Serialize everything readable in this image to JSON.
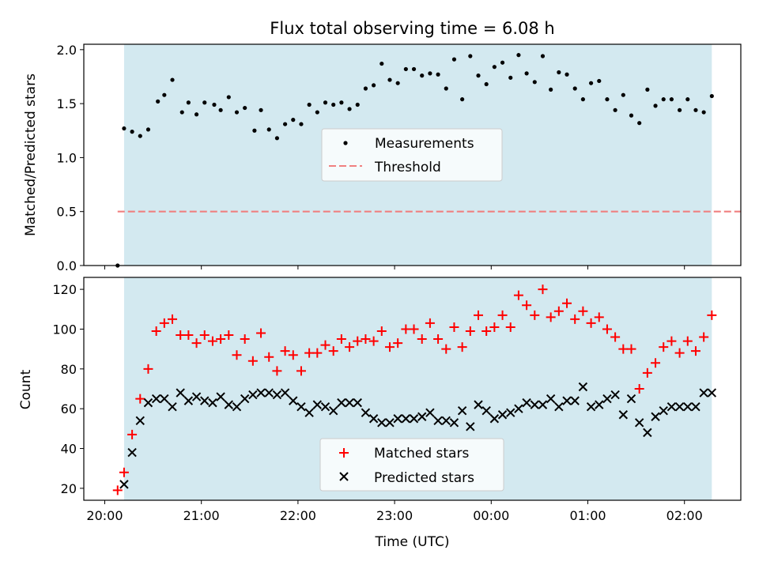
{
  "chart_data": {
    "title": "Flux total observing time = 6.08 h",
    "xlabel": "Time (UTC)",
    "xtick_labels": [
      "20:00",
      "21:00",
      "22:00",
      "23:00",
      "00:00",
      "01:00",
      "02:00"
    ],
    "xtick_values": [
      0,
      60,
      120,
      180,
      240,
      300,
      360
    ],
    "x_units_note": "minutes after 20:00 UTC",
    "xlim": [
      -13,
      395
    ],
    "shaded_interval": [
      12,
      377
    ],
    "shade_color": "#d3e9f0",
    "top_panel": {
      "type": "scatter",
      "ylabel": "Matched/Predicted stars",
      "ylim": [
        0,
        2.05
      ],
      "yticks": [
        0.0,
        0.5,
        1.0,
        1.5,
        2.0
      ],
      "ytick_labels": [
        "0.0",
        "0.5",
        "1.0",
        "1.5",
        "2.0"
      ],
      "threshold": 0.5,
      "threshold_color": "#f08080",
      "measurement_color": "#000000",
      "legend": [
        "Measurements",
        "Threshold"
      ],
      "measurements": {
        "x": [
          8,
          12,
          17,
          22,
          27,
          33,
          37,
          42,
          48,
          52,
          57,
          62,
          68,
          72,
          77,
          82,
          87,
          93,
          97,
          102,
          107,
          112,
          117,
          122,
          127,
          132,
          137,
          142,
          147,
          152,
          157,
          162,
          167,
          172,
          177,
          182,
          187,
          192,
          197,
          202,
          207,
          212,
          217,
          222,
          227,
          232,
          237,
          242,
          247,
          252,
          257,
          262,
          267,
          272,
          277,
          282,
          287,
          292,
          297,
          302,
          307,
          312,
          317,
          322,
          327,
          332,
          337,
          342,
          347,
          352,
          357,
          362,
          367,
          372,
          377
        ],
        "y": [
          0.0,
          1.27,
          1.24,
          1.2,
          1.26,
          1.52,
          1.58,
          1.72,
          1.42,
          1.51,
          1.4,
          1.51,
          1.49,
          1.44,
          1.56,
          1.42,
          1.46,
          1.25,
          1.44,
          1.26,
          1.18,
          1.31,
          1.35,
          1.31,
          1.49,
          1.42,
          1.51,
          1.49,
          1.51,
          1.45,
          1.49,
          1.64,
          1.67,
          1.87,
          1.72,
          1.69,
          1.82,
          1.82,
          1.76,
          1.78,
          1.77,
          1.64,
          1.91,
          1.54,
          1.94,
          1.76,
          1.68,
          1.84,
          1.88,
          1.74,
          1.95,
          1.78,
          1.7,
          1.94,
          1.63,
          1.79,
          1.77,
          1.64,
          1.54,
          1.69,
          1.71,
          1.54,
          1.44,
          1.58,
          1.39,
          1.32,
          1.63,
          1.48,
          1.54,
          1.54,
          1.44,
          1.54,
          1.44,
          1.42,
          1.57
        ]
      }
    },
    "bottom_panel": {
      "type": "scatter",
      "ylabel": "Count",
      "ylim": [
        14,
        126
      ],
      "yticks": [
        20,
        40,
        60,
        80,
        100,
        120
      ],
      "ytick_labels": [
        "20",
        "40",
        "60",
        "80",
        "100",
        "120"
      ],
      "legend": [
        "Matched stars",
        "Predicted stars"
      ],
      "series": [
        {
          "name": "Matched stars",
          "marker": "plus",
          "color": "#ff0000",
          "x": [
            8,
            12,
            17,
            22,
            27,
            32,
            37,
            42,
            47,
            52,
            57,
            62,
            67,
            72,
            77,
            82,
            87,
            92,
            97,
            102,
            107,
            112,
            117,
            122,
            127,
            132,
            137,
            142,
            147,
            152,
            157,
            162,
            167,
            172,
            177,
            182,
            187,
            192,
            197,
            202,
            207,
            212,
            217,
            222,
            227,
            232,
            237,
            242,
            247,
            252,
            257,
            262,
            267,
            272,
            277,
            282,
            287,
            292,
            297,
            302,
            307,
            312,
            317,
            322,
            327,
            332,
            337,
            342,
            347,
            352,
            357,
            362,
            367,
            372,
            377
          ],
          "y": [
            19,
            28,
            47,
            65,
            80,
            99,
            103,
            105,
            97,
            97,
            93,
            97,
            94,
            95,
            97,
            87,
            95,
            84,
            98,
            86,
            79,
            89,
            87,
            79,
            88,
            88,
            92,
            89,
            95,
            91,
            94,
            95,
            94,
            99,
            91,
            93,
            100,
            100,
            95,
            103,
            95,
            90,
            101,
            91,
            99,
            107,
            99,
            101,
            107,
            101,
            117,
            112,
            107,
            120,
            106,
            109,
            113,
            105,
            109,
            103,
            106,
            100,
            96,
            90,
            90,
            70,
            78,
            83,
            91,
            94,
            88,
            94,
            89,
            96,
            107
          ]
        },
        {
          "name": "Predicted stars",
          "marker": "x",
          "color": "#000000",
          "x": [
            12,
            17,
            22,
            27,
            32,
            37,
            42,
            47,
            52,
            57,
            62,
            67,
            72,
            77,
            82,
            87,
            92,
            97,
            102,
            107,
            112,
            117,
            122,
            127,
            132,
            137,
            142,
            147,
            152,
            157,
            162,
            167,
            172,
            177,
            182,
            187,
            192,
            197,
            202,
            207,
            212,
            217,
            222,
            227,
            232,
            237,
            242,
            247,
            252,
            257,
            262,
            267,
            272,
            277,
            282,
            287,
            292,
            297,
            302,
            307,
            312,
            317,
            322,
            327,
            332,
            337,
            342,
            347,
            352,
            357,
            362,
            367,
            372,
            377
          ],
          "y": [
            22,
            38,
            54,
            63,
            65,
            65,
            61,
            68,
            64,
            66,
            64,
            63,
            66,
            62,
            61,
            65,
            67,
            68,
            68,
            67,
            68,
            64,
            61,
            58,
            62,
            61,
            59,
            63,
            63,
            63,
            58,
            55,
            53,
            53,
            55,
            55,
            55,
            56,
            58,
            54,
            54,
            53,
            59,
            51,
            62,
            59,
            55,
            57,
            58,
            60,
            63,
            62,
            62,
            65,
            61,
            64,
            64,
            71,
            61,
            62,
            65,
            67,
            57,
            65,
            53,
            48,
            56,
            59,
            61,
            61,
            61,
            61,
            68,
            68
          ]
        }
      ]
    }
  }
}
